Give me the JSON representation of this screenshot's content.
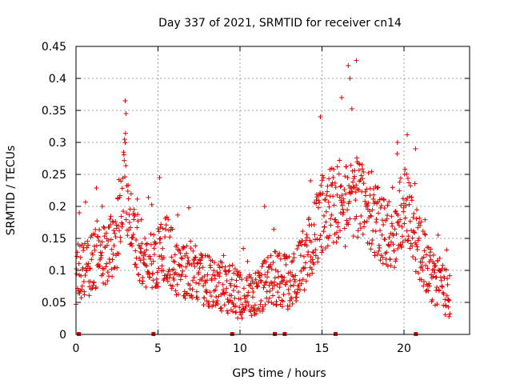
{
  "chart_data": {
    "type": "scatter",
    "title": "Day 337 of 2021, SRMTID for receiver cn14",
    "xlabel": "GPS time / hours",
    "ylabel": "SRMTID / TECUs",
    "xlim": [
      0,
      24
    ],
    "ylim": [
      0,
      0.45
    ],
    "x_ticks": [
      0,
      5,
      10,
      15,
      20
    ],
    "x_tick_labels": [
      "0",
      "5",
      "10",
      "15",
      "20"
    ],
    "y_ticks": [
      0,
      0.05,
      0.1,
      0.15,
      0.2,
      0.25,
      0.3,
      0.35,
      0.4,
      0.45
    ],
    "y_tick_labels": [
      "0",
      "0.05",
      "0.1",
      "0.15",
      "0.2",
      "0.25",
      "0.3",
      "0.35",
      "0.4",
      "0.45"
    ],
    "grid": true,
    "marker": "plus",
    "color": "#e00000",
    "profile_x": [
      0,
      0.5,
      1,
      1.5,
      2,
      2.5,
      2.8,
      3,
      3.2,
      3.5,
      4,
      4.5,
      5,
      5.5,
      6,
      6.5,
      7,
      7.5,
      8,
      8.5,
      9,
      9.5,
      10,
      10.5,
      11,
      11.5,
      12,
      12.5,
      13,
      13.5,
      14,
      14.5,
      15,
      15.5,
      16,
      16.5,
      17,
      17.5,
      18,
      18.5,
      19,
      19.5,
      20,
      20.5,
      21,
      21.5,
      22,
      22.5,
      22.8
    ],
    "profile_y": [
      0.09,
      0.1,
      0.11,
      0.12,
      0.13,
      0.16,
      0.21,
      0.25,
      0.2,
      0.15,
      0.13,
      0.11,
      0.12,
      0.14,
      0.11,
      0.1,
      0.1,
      0.09,
      0.085,
      0.08,
      0.075,
      0.07,
      0.06,
      0.055,
      0.065,
      0.08,
      0.09,
      0.085,
      0.08,
      0.1,
      0.12,
      0.15,
      0.19,
      0.2,
      0.2,
      0.2,
      0.22,
      0.2,
      0.19,
      0.17,
      0.16,
      0.16,
      0.2,
      0.17,
      0.13,
      0.1,
      0.08,
      0.07,
      0.06
    ],
    "spread": 0.045,
    "point_step_hours": 0.02,
    "peaks": [
      {
        "x": 3.0,
        "y": 0.365
      },
      {
        "x": 3.05,
        "y": 0.345
      },
      {
        "x": 5.1,
        "y": 0.245
      },
      {
        "x": 14.9,
        "y": 0.34
      },
      {
        "x": 16.2,
        "y": 0.37
      },
      {
        "x": 16.6,
        "y": 0.42
      },
      {
        "x": 17.1,
        "y": 0.428
      },
      {
        "x": 16.7,
        "y": 0.4
      },
      {
        "x": 19.6,
        "y": 0.3
      },
      {
        "x": 20.2,
        "y": 0.312
      },
      {
        "x": 20.7,
        "y": 0.29
      },
      {
        "x": 0.2,
        "y": 0.19
      },
      {
        "x": 1.6,
        "y": 0.2
      },
      {
        "x": 11.5,
        "y": 0.2
      },
      {
        "x": 14.3,
        "y": 0.24
      }
    ],
    "gap_marks_x": [
      0.15,
      4.7,
      9.5,
      12.1,
      12.7,
      15.8,
      20.7
    ]
  }
}
